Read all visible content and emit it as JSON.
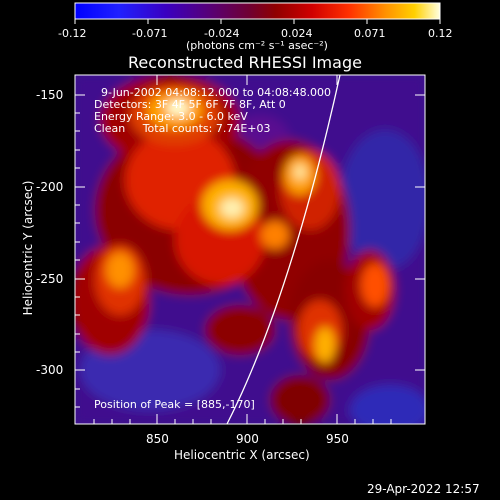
{
  "colorbar": {
    "ticks": [
      "-0.12",
      "-0.071",
      "-0.024",
      "0.024",
      "0.071",
      "0.12"
    ],
    "units": "(photons cm⁻² s⁻¹ asec⁻²)",
    "colors": [
      "#0000ff",
      "#1010ff",
      "#3a00cc",
      "#5a0080",
      "#6a0040",
      "#800000",
      "#c00000",
      "#ff2000",
      "#ff6000",
      "#ffa000",
      "#ffd000",
      "#ffff80",
      "#ffffff"
    ]
  },
  "title": "Reconstructed RHESSI Image",
  "annotations": {
    "line1": "9-Jun-2002 04:08:12.000 to 04:08:48.000",
    "line2": "Detectors: 3F 4F 5F 6F 7F 8F, Att 0",
    "line3": "Energy Range: 3.0 - 6.0 keV",
    "line4": "Clean     Total counts: 7.74E+03",
    "peak": "Position of Peak = [885,-170]"
  },
  "axes": {
    "x_label": "Heliocentric X (arcsec)",
    "y_label": "Heliocentric Y (arcsec)",
    "x_ticks": [
      "850",
      "900",
      "950"
    ],
    "y_ticks": [
      "-150",
      "-200",
      "-250",
      "-300"
    ]
  },
  "timestamp": "29-Apr-2022 12:57",
  "palette": {
    "background": "#000000",
    "limb_line": "#ffffff"
  }
}
